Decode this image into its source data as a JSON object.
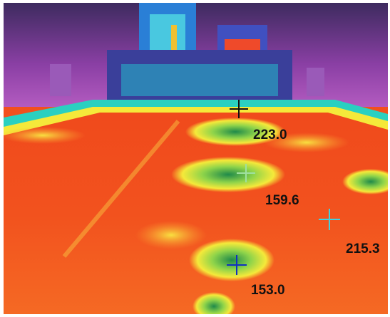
{
  "measurements": [
    {
      "label": "223.0"
    },
    {
      "label": "159.6"
    },
    {
      "label": "215.3"
    },
    {
      "label": "153.0"
    }
  ]
}
